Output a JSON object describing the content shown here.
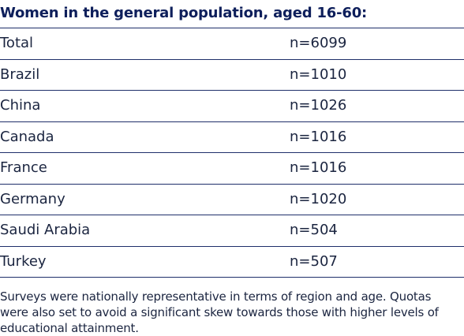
{
  "header": {
    "title": "Women in the general population, aged 16-60:"
  },
  "table": {
    "rows": [
      [
        "Total",
        "n=6099"
      ],
      [
        "Brazil",
        "n=1010"
      ],
      [
        "China",
        "n=1026"
      ],
      [
        "Canada",
        "n=1016"
      ],
      [
        "France",
        "n=1016"
      ],
      [
        "Germany",
        "n=1020"
      ],
      [
        "Saudi Arabia",
        "n=504"
      ],
      [
        "Turkey",
        "n=507"
      ]
    ]
  },
  "footer": {
    "note": "Surveys were nationally representative in terms of region and age. Quotas were also set to avoid a significant skew towards those with higher levels of educational attainment."
  }
}
